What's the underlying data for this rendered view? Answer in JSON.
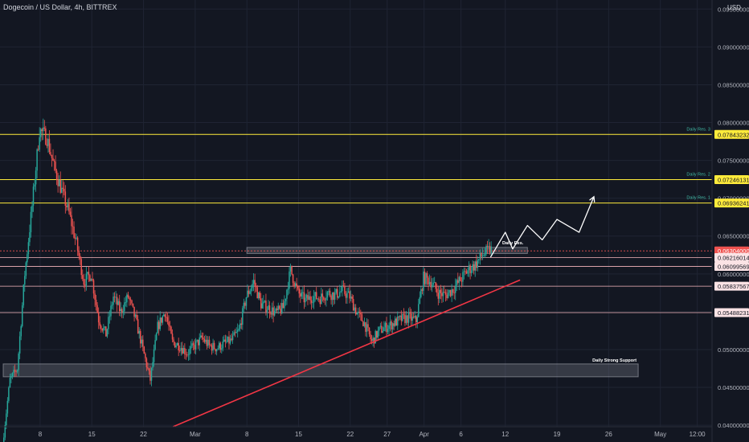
{
  "header": {
    "title": "Dogecoin / US Dollar, 4h, BITTREX",
    "currency": "USD"
  },
  "colors": {
    "background": "#131722",
    "grid": "#1f2433",
    "up": "#26a69a",
    "down": "#ef5350",
    "resistance": "#ffeb3b",
    "level": "#f7b7bd",
    "trendline": "#f23645",
    "zone": "#787b86",
    "projection": "#ffffff",
    "annotation": "#42bda8"
  },
  "chart_data": {
    "type": "candlestick",
    "title": "Dogecoin / US Dollar, 4h, BITTREX",
    "ylabel": "USD",
    "ylim": [
      0.0398,
      0.0962
    ],
    "x_range": [
      "2021-02-03",
      "2021-05-10"
    ],
    "grid": true,
    "y_ticks": [
      0.04,
      0.045,
      0.05,
      0.055,
      0.06,
      0.065,
      0.07,
      0.075,
      0.08,
      0.085,
      0.09,
      0.095
    ],
    "y_tick_labels": [
      "0.04000000",
      "0.04500000",
      "0.05000000",
      "0.05500000",
      "0.06000000",
      "0.06500000",
      "0.07000000",
      "0.07500000",
      "0.08000000",
      "0.08500000",
      "0.09000000",
      "0.09500000"
    ],
    "x_ticks": [
      {
        "date": "2021-02-08",
        "label": "8"
      },
      {
        "date": "2021-02-15",
        "label": "15"
      },
      {
        "date": "2021-02-22",
        "label": "22"
      },
      {
        "date": "2021-03-01",
        "label": "Mar"
      },
      {
        "date": "2021-03-08",
        "label": "8"
      },
      {
        "date": "2021-03-15",
        "label": "15"
      },
      {
        "date": "2021-03-22",
        "label": "22"
      },
      {
        "date": "2021-03-27",
        "label": "27"
      },
      {
        "date": "2021-04-01",
        "label": "Apr"
      },
      {
        "date": "2021-04-06",
        "label": "6"
      },
      {
        "date": "2021-04-12",
        "label": "12"
      },
      {
        "date": "2021-04-19",
        "label": "19"
      },
      {
        "date": "2021-04-26",
        "label": "26"
      },
      {
        "date": "2021-05-03",
        "label": "May"
      },
      {
        "date": "2021-05-08",
        "label": "12:00"
      }
    ],
    "price_path": [
      {
        "date": "2021-02-03",
        "value": 0.0375
      },
      {
        "date": "2021-02-04",
        "value": 0.046
      },
      {
        "date": "2021-02-05",
        "value": 0.0475
      },
      {
        "date": "2021-02-06",
        "value": 0.06
      },
      {
        "date": "2021-02-07",
        "value": 0.069
      },
      {
        "date": "2021-02-08",
        "value": 0.079
      },
      {
        "date": "2021-02-09",
        "value": 0.078
      },
      {
        "date": "2021-02-10",
        "value": 0.074
      },
      {
        "date": "2021-02-11",
        "value": 0.071
      },
      {
        "date": "2021-02-12",
        "value": 0.068
      },
      {
        "date": "2021-02-13",
        "value": 0.064
      },
      {
        "date": "2021-02-14",
        "value": 0.059
      },
      {
        "date": "2021-02-15",
        "value": 0.06
      },
      {
        "date": "2021-02-16",
        "value": 0.054
      },
      {
        "date": "2021-02-17",
        "value": 0.052
      },
      {
        "date": "2021-02-18",
        "value": 0.057
      },
      {
        "date": "2021-02-19",
        "value": 0.055
      },
      {
        "date": "2021-02-20",
        "value": 0.057
      },
      {
        "date": "2021-02-21",
        "value": 0.054
      },
      {
        "date": "2021-02-22",
        "value": 0.05
      },
      {
        "date": "2021-02-23",
        "value": 0.046
      },
      {
        "date": "2021-02-24",
        "value": 0.053
      },
      {
        "date": "2021-02-25",
        "value": 0.055
      },
      {
        "date": "2021-02-26",
        "value": 0.051
      },
      {
        "date": "2021-02-27",
        "value": 0.0505
      },
      {
        "date": "2021-02-28",
        "value": 0.0495
      },
      {
        "date": "2021-03-01",
        "value": 0.0505
      },
      {
        "date": "2021-03-02",
        "value": 0.0515
      },
      {
        "date": "2021-03-03",
        "value": 0.0505
      },
      {
        "date": "2021-03-04",
        "value": 0.0502
      },
      {
        "date": "2021-03-05",
        "value": 0.0508
      },
      {
        "date": "2021-03-06",
        "value": 0.0512
      },
      {
        "date": "2021-03-07",
        "value": 0.0525
      },
      {
        "date": "2021-03-08",
        "value": 0.057
      },
      {
        "date": "2021-03-09",
        "value": 0.059
      },
      {
        "date": "2021-03-10",
        "value": 0.056
      },
      {
        "date": "2021-03-11",
        "value": 0.0555
      },
      {
        "date": "2021-03-12",
        "value": 0.0548
      },
      {
        "date": "2021-03-13",
        "value": 0.0555
      },
      {
        "date": "2021-03-14",
        "value": 0.0605
      },
      {
        "date": "2021-03-15",
        "value": 0.0575
      },
      {
        "date": "2021-03-16",
        "value": 0.0565
      },
      {
        "date": "2021-03-17",
        "value": 0.057
      },
      {
        "date": "2021-03-18",
        "value": 0.0568
      },
      {
        "date": "2021-03-19",
        "value": 0.0575
      },
      {
        "date": "2021-03-20",
        "value": 0.0572
      },
      {
        "date": "2021-03-21",
        "value": 0.0578
      },
      {
        "date": "2021-03-22",
        "value": 0.057
      },
      {
        "date": "2021-03-23",
        "value": 0.0548
      },
      {
        "date": "2021-03-24",
        "value": 0.0535
      },
      {
        "date": "2021-03-25",
        "value": 0.051
      },
      {
        "date": "2021-03-26",
        "value": 0.0525
      },
      {
        "date": "2021-03-27",
        "value": 0.053
      },
      {
        "date": "2021-03-28",
        "value": 0.0535
      },
      {
        "date": "2021-03-29",
        "value": 0.054
      },
      {
        "date": "2021-03-30",
        "value": 0.0542
      },
      {
        "date": "2021-03-31",
        "value": 0.0538
      },
      {
        "date": "2021-04-01",
        "value": 0.0595
      },
      {
        "date": "2021-04-02",
        "value": 0.059
      },
      {
        "date": "2021-04-03",
        "value": 0.0575
      },
      {
        "date": "2021-04-04",
        "value": 0.0572
      },
      {
        "date": "2021-04-05",
        "value": 0.058
      },
      {
        "date": "2021-04-06",
        "value": 0.0592
      },
      {
        "date": "2021-04-07",
        "value": 0.0605
      },
      {
        "date": "2021-04-08",
        "value": 0.0612
      },
      {
        "date": "2021-04-09",
        "value": 0.0625
      },
      {
        "date": "2021-04-10",
        "value": 0.0632
      }
    ],
    "horizontal_levels": [
      {
        "label": "Daily Res. 3",
        "price_label": "0.07843232",
        "value": 0.07843232,
        "kind": "resistance"
      },
      {
        "label": "Daily Res. 2",
        "price_label": "0.07246131",
        "value": 0.07246131,
        "kind": "resistance"
      },
      {
        "label": "Daily Res. 1",
        "price_label": "0.06936241",
        "value": 0.06936241,
        "kind": "resistance"
      },
      {
        "label": "",
        "price_label": "0.06304000",
        "value": 0.06304,
        "kind": "current"
      },
      {
        "label": "",
        "price_label": "0.06216014",
        "value": 0.06216014,
        "kind": "level"
      },
      {
        "label": "",
        "price_label": "0.06099569",
        "value": 0.06099569,
        "kind": "level"
      },
      {
        "label": "",
        "price_label": "0.05837567",
        "value": 0.05837567,
        "kind": "level"
      },
      {
        "label": "",
        "price_label": "0.05488231",
        "value": 0.05488231,
        "kind": "level"
      }
    ],
    "zones": [
      {
        "label": "Daily Res.",
        "from": "2021-03-08",
        "to": "2021-04-15",
        "low": 0.0627,
        "high": 0.0635
      },
      {
        "label": "Daily Strong Support",
        "from": "2021-02-03",
        "to": "2021-04-30",
        "low": 0.0464,
        "high": 0.0481
      }
    ],
    "trendline": {
      "from": {
        "date": "2021-02-26",
        "value": 0.0398
      },
      "to": {
        "date": "2021-04-14",
        "value": 0.0592
      }
    },
    "projection_path": [
      {
        "date": "2021-04-10",
        "value": 0.0622
      },
      {
        "date": "2021-04-12",
        "value": 0.0655
      },
      {
        "date": "2021-04-13",
        "value": 0.0633
      },
      {
        "date": "2021-04-15",
        "value": 0.0664
      },
      {
        "date": "2021-04-17",
        "value": 0.0645
      },
      {
        "date": "2021-04-19",
        "value": 0.0672
      },
      {
        "date": "2021-04-22",
        "value": 0.0655
      },
      {
        "date": "2021-04-24",
        "value": 0.0702
      }
    ]
  }
}
